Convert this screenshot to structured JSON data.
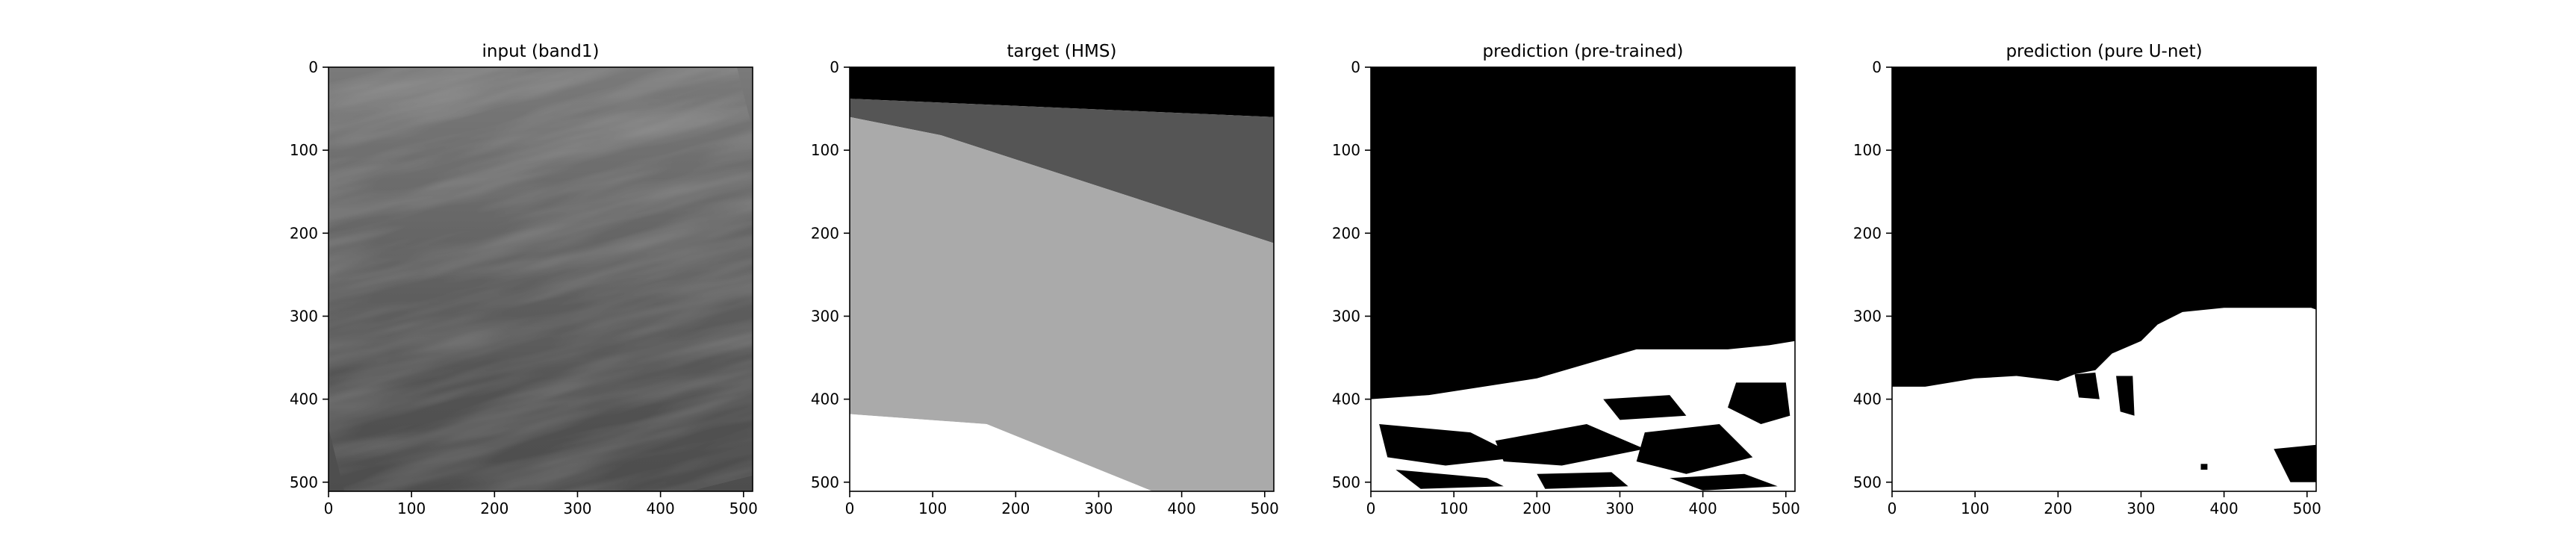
{
  "chart_data": [
    {
      "type": "heatmap",
      "title": "input (band1)",
      "xlim": [
        0,
        511
      ],
      "ylim": [
        511,
        0
      ],
      "xticks": [
        0,
        100,
        200,
        300,
        400,
        500
      ],
      "yticks": [
        0,
        100,
        200,
        300,
        400,
        500
      ],
      "colormap": "gray",
      "content": "grayscale satellite band with diagonal streaky cloud texture, darker toward the bottom",
      "bands": [
        {
          "y": 0,
          "gray": 0.48
        },
        {
          "y": 150,
          "gray": 0.42
        },
        {
          "y": 300,
          "gray": 0.36
        },
        {
          "y": 400,
          "gray": 0.32
        },
        {
          "y": 511,
          "gray": 0.3
        }
      ]
    },
    {
      "type": "heatmap",
      "title": "target (HMS)",
      "xlim": [
        0,
        511
      ],
      "ylim": [
        511,
        0
      ],
      "xticks": [
        0,
        100,
        200,
        300,
        400,
        500
      ],
      "yticks": [
        0,
        100,
        200,
        300,
        400,
        500
      ],
      "colormap": "gray",
      "regions": [
        {
          "label": "black",
          "value": 0,
          "color": "#000000",
          "polygon": [
            [
              0,
              0
            ],
            [
              511,
              0
            ],
            [
              511,
              60
            ],
            [
              0,
              38
            ]
          ]
        },
        {
          "label": "dark gray",
          "value": 0.33,
          "color": "#555555",
          "polygon": [
            [
              0,
              38
            ],
            [
              511,
              60
            ],
            [
              511,
              212
            ],
            [
              110,
              82
            ],
            [
              0,
              60
            ]
          ]
        },
        {
          "label": "light gray",
          "value": 0.66,
          "color": "#aaaaaa",
          "polygon": [
            [
              0,
              60
            ],
            [
              110,
              82
            ],
            [
              511,
              212
            ],
            [
              511,
              511
            ],
            [
              365,
              511
            ],
            [
              165,
              430
            ],
            [
              0,
              418
            ]
          ]
        },
        {
          "label": "white",
          "value": 1,
          "color": "#ffffff",
          "polygon": [
            [
              0,
              418
            ],
            [
              165,
              430
            ],
            [
              365,
              511
            ],
            [
              0,
              511
            ]
          ]
        }
      ]
    },
    {
      "type": "heatmap",
      "title": "prediction (pre-trained)",
      "xlim": [
        0,
        511
      ],
      "ylim": [
        511,
        0
      ],
      "xticks": [
        0,
        100,
        200,
        300,
        400,
        500
      ],
      "yticks": [
        0,
        100,
        200,
        300,
        400,
        500
      ],
      "colormap": "gray",
      "background": "#000000",
      "white_regions": [
        [
          [
            0,
            400
          ],
          [
            70,
            395
          ],
          [
            200,
            375
          ],
          [
            320,
            340
          ],
          [
            430,
            340
          ],
          [
            480,
            335
          ],
          [
            511,
            330
          ],
          [
            511,
            511
          ],
          [
            0,
            511
          ]
        ]
      ],
      "dark_blobs": [
        [
          [
            10,
            430
          ],
          [
            120,
            440
          ],
          [
            180,
            470
          ],
          [
            90,
            480
          ],
          [
            20,
            470
          ]
        ],
        [
          [
            150,
            450
          ],
          [
            260,
            430
          ],
          [
            330,
            460
          ],
          [
            230,
            480
          ],
          [
            160,
            475
          ]
        ],
        [
          [
            280,
            400
          ],
          [
            360,
            395
          ],
          [
            380,
            420
          ],
          [
            300,
            425
          ]
        ],
        [
          [
            330,
            440
          ],
          [
            420,
            430
          ],
          [
            460,
            470
          ],
          [
            380,
            490
          ],
          [
            320,
            475
          ]
        ],
        [
          [
            440,
            380
          ],
          [
            500,
            380
          ],
          [
            505,
            420
          ],
          [
            470,
            430
          ],
          [
            430,
            410
          ]
        ],
        [
          [
            30,
            485
          ],
          [
            140,
            495
          ],
          [
            160,
            505
          ],
          [
            60,
            508
          ]
        ],
        [
          [
            360,
            495
          ],
          [
            450,
            490
          ],
          [
            490,
            505
          ],
          [
            400,
            510
          ]
        ],
        [
          [
            200,
            490
          ],
          [
            290,
            488
          ],
          [
            310,
            505
          ],
          [
            210,
            508
          ]
        ]
      ]
    },
    {
      "type": "heatmap",
      "title": "prediction (pure U-net)",
      "xlim": [
        0,
        511
      ],
      "ylim": [
        511,
        0
      ],
      "xticks": [
        0,
        100,
        200,
        300,
        400,
        500
      ],
      "yticks": [
        0,
        100,
        200,
        300,
        400,
        500
      ],
      "colormap": "gray",
      "background": "#000000",
      "white_regions": [
        [
          [
            0,
            385
          ],
          [
            40,
            385
          ],
          [
            70,
            380
          ],
          [
            100,
            375
          ],
          [
            150,
            372
          ],
          [
            200,
            378
          ],
          [
            220,
            370
          ],
          [
            245,
            365
          ],
          [
            265,
            345
          ],
          [
            300,
            330
          ],
          [
            320,
            310
          ],
          [
            350,
            295
          ],
          [
            400,
            290
          ],
          [
            470,
            290
          ],
          [
            505,
            290
          ],
          [
            511,
            292
          ],
          [
            511,
            511
          ],
          [
            0,
            511
          ]
        ]
      ],
      "dark_blobs": [
        [
          [
            220,
            370
          ],
          [
            245,
            368
          ],
          [
            250,
            400
          ],
          [
            225,
            398
          ]
        ],
        [
          [
            270,
            372
          ],
          [
            290,
            372
          ],
          [
            292,
            420
          ],
          [
            275,
            415
          ]
        ],
        [
          [
            460,
            460
          ],
          [
            511,
            455
          ],
          [
            511,
            500
          ],
          [
            480,
            500
          ]
        ],
        [
          [
            372,
            478
          ],
          [
            380,
            478
          ],
          [
            380,
            485
          ],
          [
            372,
            485
          ]
        ]
      ]
    }
  ]
}
